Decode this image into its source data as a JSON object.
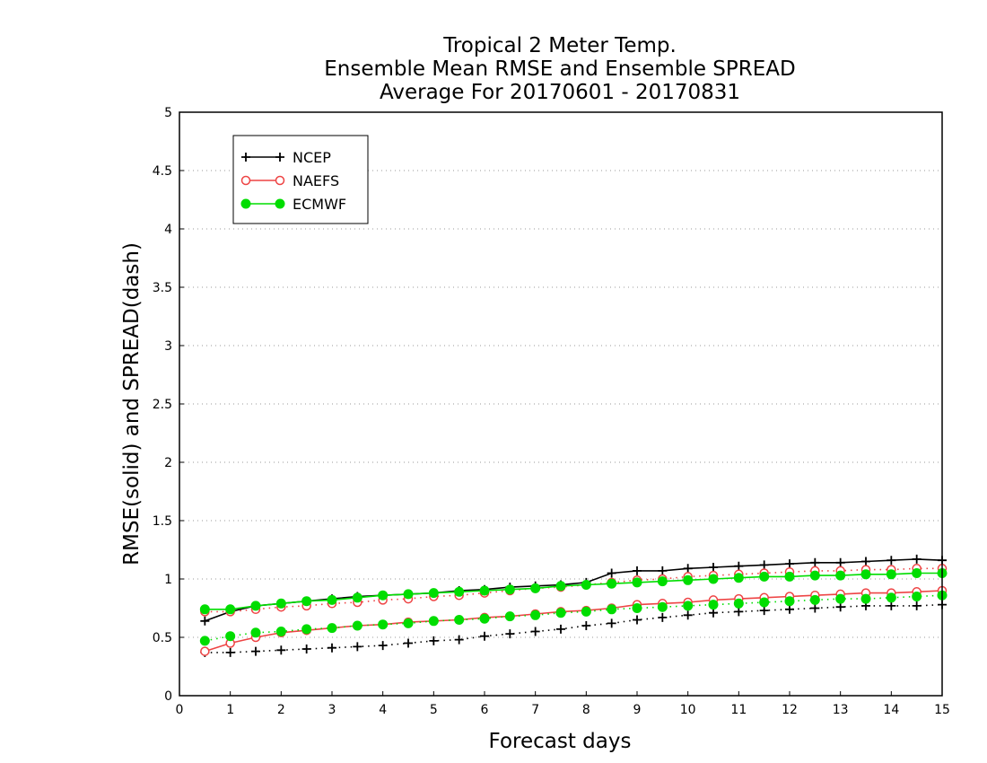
{
  "chart_data": {
    "type": "line",
    "title_lines": [
      "Tropical 2 Meter Temp.",
      "Ensemble Mean RMSE and Ensemble SPREAD",
      "Average For 20170601 - 20170831"
    ],
    "xlabel": "Forecast days",
    "ylabel": "RMSE(solid) and SPREAD(dash)",
    "xlim": [
      0,
      15
    ],
    "ylim": [
      0,
      5
    ],
    "xticks": [
      "0",
      "1",
      "2",
      "3",
      "4",
      "5",
      "6",
      "7",
      "8",
      "9",
      "10",
      "11",
      "12",
      "13",
      "14",
      "15"
    ],
    "yticks": [
      "0",
      "0.5",
      "1",
      "1.5",
      "2",
      "2.5",
      "3",
      "3.5",
      "4",
      "4.5",
      "5"
    ],
    "grid": "horizontal dotted",
    "legend_position": "top-left",
    "x": [
      0.5,
      1,
      1.5,
      2,
      2.5,
      3,
      3.5,
      4,
      4.5,
      5,
      5.5,
      6,
      6.5,
      7,
      7.5,
      8,
      8.5,
      9,
      9.5,
      10,
      10.5,
      11,
      11.5,
      12,
      12.5,
      13,
      13.5,
      14,
      14.5,
      15
    ],
    "series": [
      {
        "name": "NCEP",
        "color": "#000000",
        "marker": "plus",
        "rmse": [
          0.64,
          0.72,
          0.77,
          0.79,
          0.81,
          0.83,
          0.85,
          0.86,
          0.87,
          0.88,
          0.9,
          0.91,
          0.93,
          0.94,
          0.95,
          0.97,
          1.05,
          1.07,
          1.07,
          1.09,
          1.1,
          1.11,
          1.12,
          1.13,
          1.14,
          1.14,
          1.15,
          1.16,
          1.17,
          1.16
        ],
        "spread": [
          0.37,
          0.37,
          0.38,
          0.39,
          0.4,
          0.41,
          0.42,
          0.43,
          0.45,
          0.47,
          0.48,
          0.51,
          0.53,
          0.55,
          0.57,
          0.6,
          0.62,
          0.65,
          0.67,
          0.69,
          0.71,
          0.72,
          0.73,
          0.74,
          0.75,
          0.76,
          0.77,
          0.77,
          0.77,
          0.78
        ]
      },
      {
        "name": "NAEFS",
        "color": "#ee4444",
        "marker": "open-circle",
        "rmse": [
          0.38,
          0.45,
          0.5,
          0.54,
          0.56,
          0.58,
          0.6,
          0.61,
          0.63,
          0.64,
          0.65,
          0.67,
          0.68,
          0.7,
          0.72,
          0.73,
          0.75,
          0.78,
          0.79,
          0.8,
          0.82,
          0.83,
          0.84,
          0.85,
          0.86,
          0.87,
          0.88,
          0.88,
          0.89,
          0.9
        ],
        "spread": [
          0.72,
          0.72,
          0.74,
          0.76,
          0.77,
          0.79,
          0.8,
          0.82,
          0.83,
          0.85,
          0.86,
          0.88,
          0.9,
          0.92,
          0.93,
          0.95,
          0.97,
          0.99,
          1.0,
          1.02,
          1.03,
          1.04,
          1.05,
          1.06,
          1.07,
          1.07,
          1.08,
          1.08,
          1.09,
          1.09
        ]
      },
      {
        "name": "ECMWF",
        "color": "#00dd00",
        "marker": "filled-circle",
        "rmse": [
          0.74,
          0.74,
          0.77,
          0.79,
          0.81,
          0.82,
          0.84,
          0.86,
          0.87,
          0.88,
          0.89,
          0.9,
          0.91,
          0.92,
          0.94,
          0.95,
          0.96,
          0.97,
          0.98,
          0.99,
          1.0,
          1.01,
          1.02,
          1.02,
          1.03,
          1.03,
          1.04,
          1.04,
          1.05,
          1.05
        ],
        "spread": [
          0.47,
          0.51,
          0.54,
          0.55,
          0.57,
          0.58,
          0.6,
          0.61,
          0.62,
          0.64,
          0.65,
          0.66,
          0.68,
          0.69,
          0.71,
          0.72,
          0.74,
          0.75,
          0.76,
          0.77,
          0.78,
          0.79,
          0.8,
          0.81,
          0.82,
          0.83,
          0.83,
          0.84,
          0.85,
          0.86
        ]
      }
    ]
  }
}
